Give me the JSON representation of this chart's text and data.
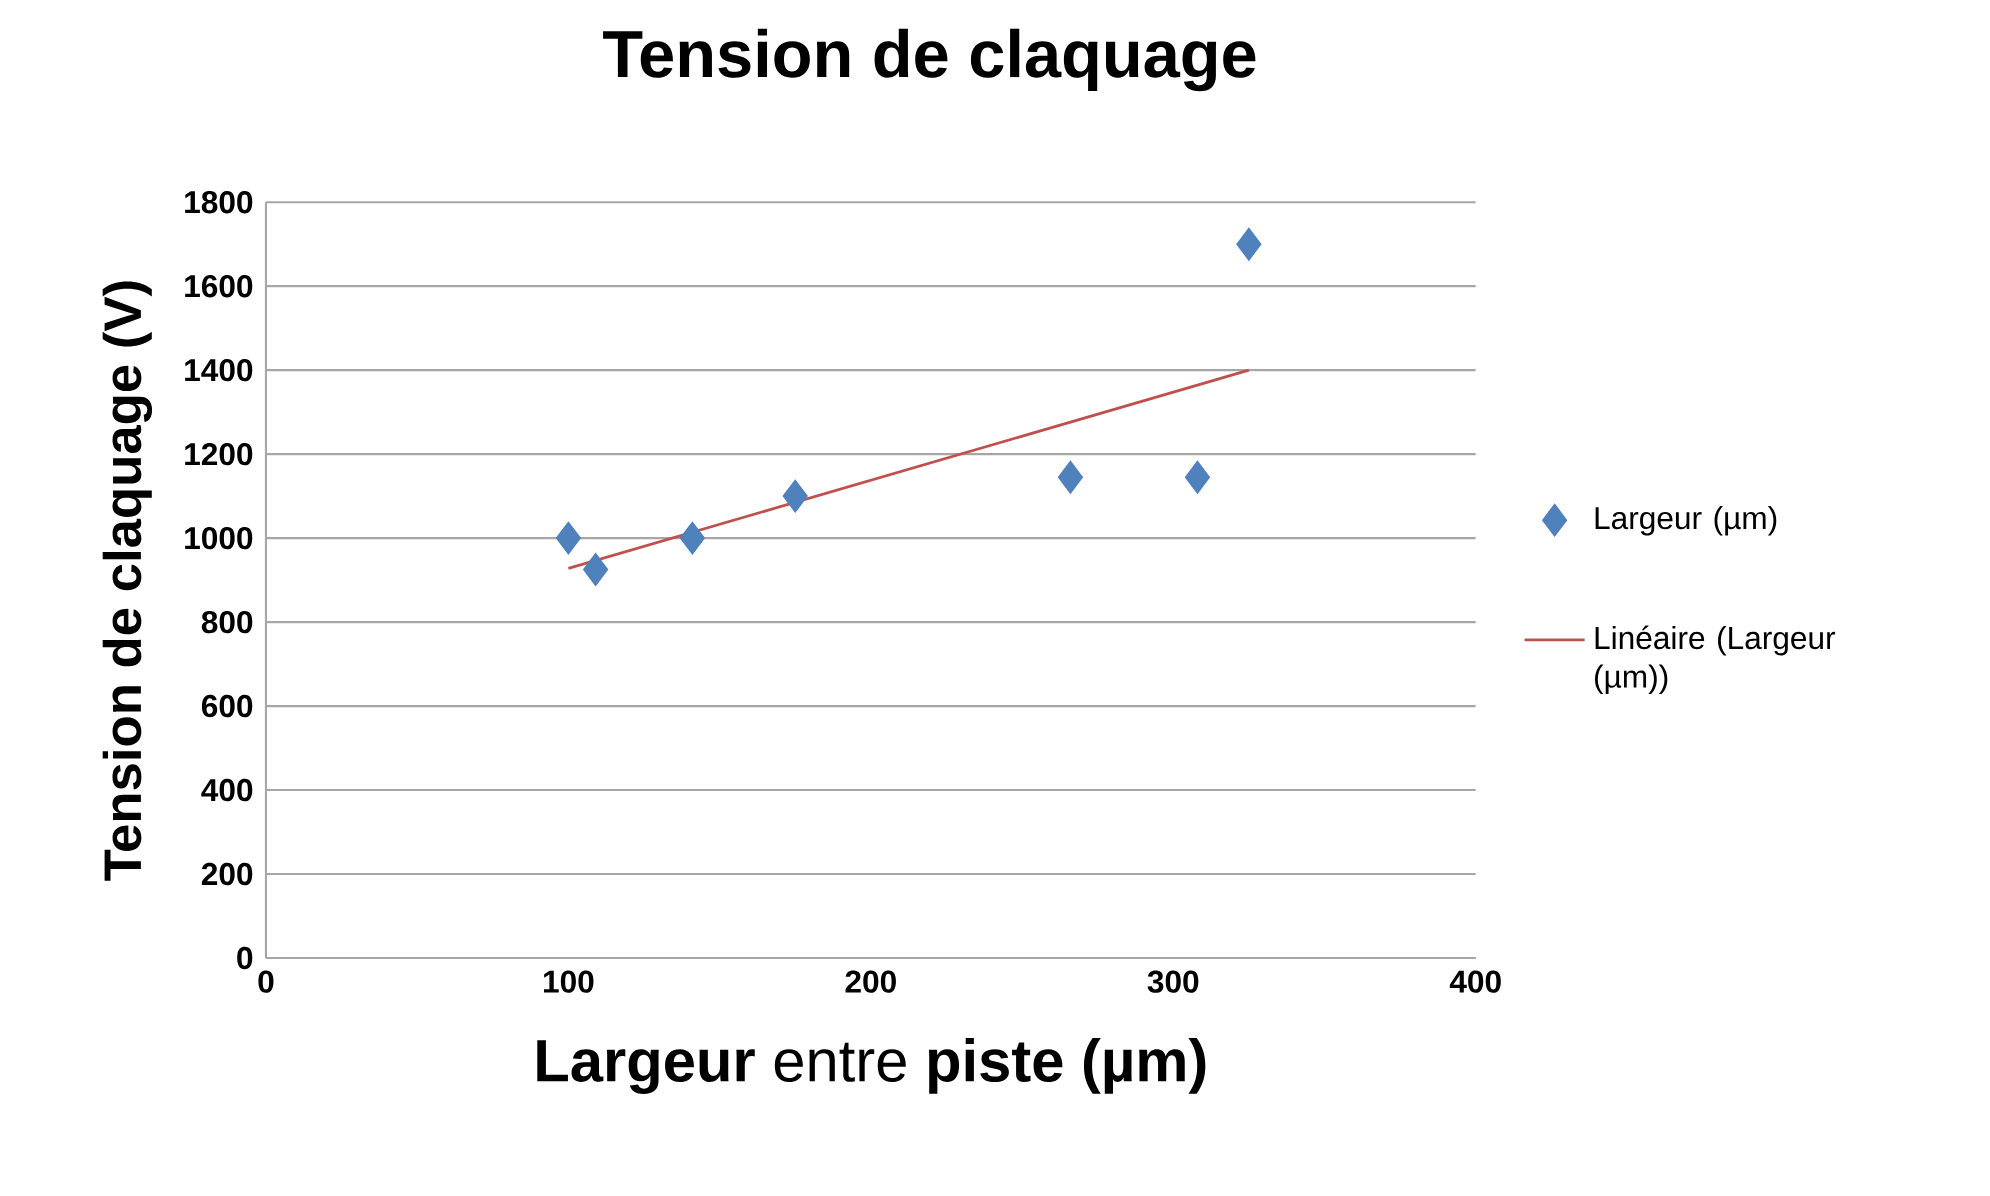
{
  "chart_data": {
    "type": "scatter",
    "title": "Tension de claquage",
    "xlabel": "**Largeur** entre **piste (µm)**",
    "ylabel": "Tension de claquage (V)",
    "xlim": [
      0,
      400
    ],
    "xticks": [
      0,
      100,
      200,
      300,
      400
    ],
    "ylim": [
      0,
      1800
    ],
    "yticks": [
      0,
      200,
      400,
      600,
      800,
      1000,
      1200,
      1400,
      1600,
      1800
    ],
    "grid": "y",
    "legend": "right",
    "marker": "diamond",
    "series": [
      {
        "name": "Largeur (µm)",
        "color": "#4f81bd",
        "x": [
          100,
          109,
          141,
          175,
          266,
          308,
          325
        ],
        "values": [
          1000,
          925,
          1000,
          1100,
          1145,
          1145,
          1700
        ]
      },
      {
        "name": "Linéaire (Largeur (µm))",
        "type": "line",
        "marker": "none",
        "color": "#c0504d",
        "x": [
          100,
          325
        ],
        "values": [
          928,
          1400
        ]
      }
    ]
  }
}
